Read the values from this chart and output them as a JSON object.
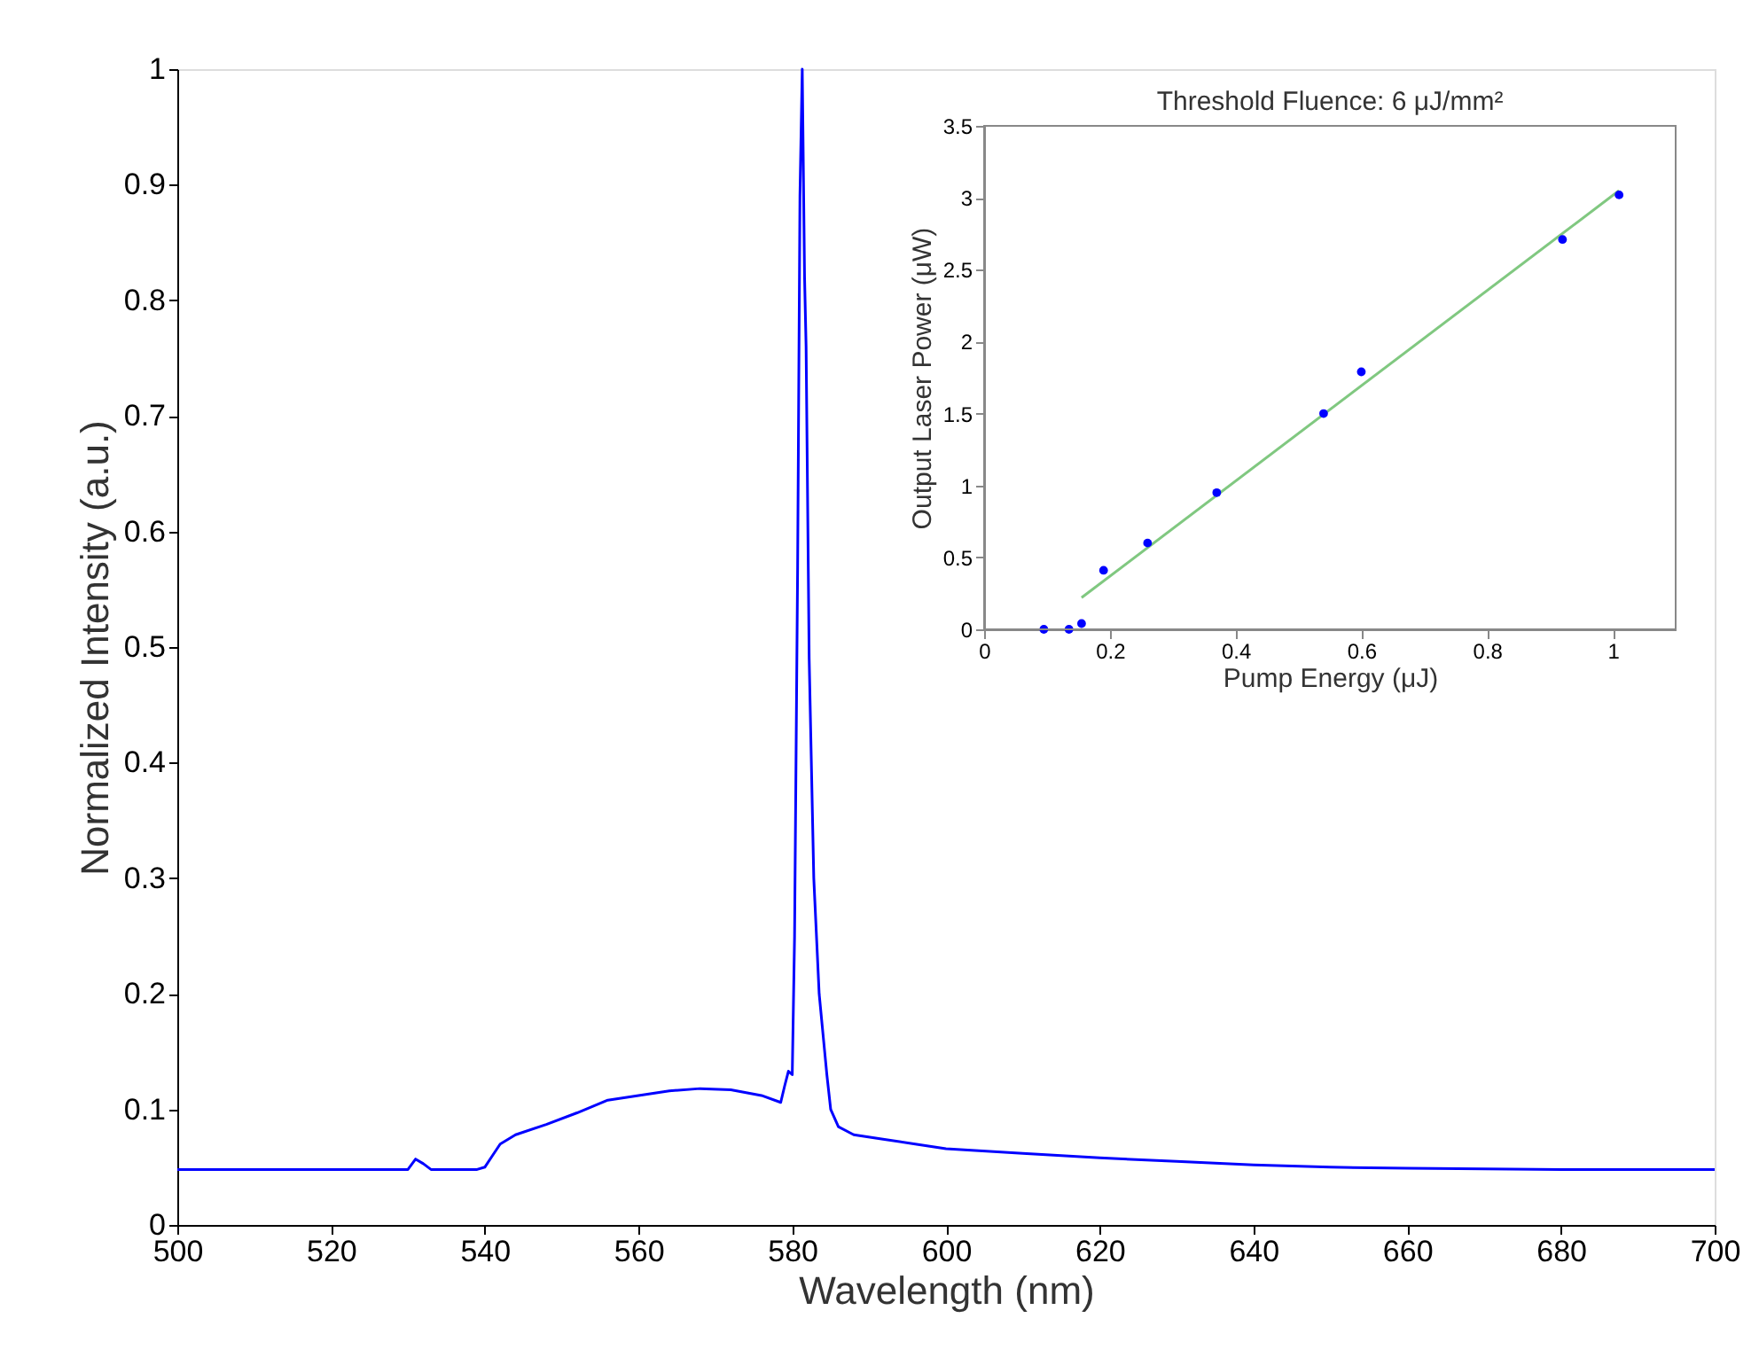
{
  "chart_data": [
    {
      "type": "line",
      "xlabel": "Wavelength (nm)",
      "ylabel": "Normalized Intensity (a.u.)",
      "color": "#0000ff",
      "line_style": "solid",
      "grid": false,
      "x": [
        500,
        510,
        520,
        530,
        531,
        532,
        533,
        536,
        539,
        540,
        541,
        542,
        544,
        548,
        552,
        556,
        560,
        564,
        568,
        572,
        576,
        578.5,
        579,
        579.5,
        580,
        580.3,
        580.7,
        581,
        581.3,
        581.6,
        581.8,
        582.2,
        582.8,
        583.5,
        584.5,
        585,
        586,
        588,
        592,
        596,
        600,
        610,
        620,
        630,
        640,
        650,
        660,
        680,
        700
      ],
      "values": [
        0.048,
        0.048,
        0.048,
        0.048,
        0.057,
        0.053,
        0.048,
        0.048,
        0.048,
        0.05,
        0.06,
        0.07,
        0.078,
        0.087,
        0.097,
        0.108,
        0.112,
        0.116,
        0.118,
        0.117,
        0.112,
        0.106,
        0.12,
        0.133,
        0.13,
        0.25,
        0.57,
        0.89,
        1.0,
        0.82,
        0.76,
        0.49,
        0.3,
        0.2,
        0.13,
        0.1,
        0.085,
        0.078,
        0.074,
        0.07,
        0.066,
        0.062,
        0.058,
        0.055,
        0.052,
        0.05,
        0.049,
        0.048,
        0.048
      ],
      "xlim": [
        500,
        700
      ],
      "xticks": [
        500,
        520,
        540,
        560,
        580,
        600,
        620,
        640,
        660,
        680,
        700
      ],
      "ylim": [
        0,
        1
      ],
      "yticks": [
        0,
        0.1,
        0.2,
        0.3,
        0.4,
        0.5,
        0.6,
        0.7,
        0.8,
        0.9,
        1
      ]
    },
    {
      "type": "scatter",
      "title": "Threshold Fluence: 6 μJ/mm²",
      "xlabel": "Pump Energy (μJ)",
      "ylabel": "Output Laser Power (μW)",
      "grid": false,
      "series": [
        {
          "type": "scatter",
          "color": "#0000ff",
          "marker": "circle",
          "x": [
            0.095,
            0.135,
            0.155,
            0.19,
            0.26,
            0.37,
            0.54,
            0.6,
            0.92,
            1.01
          ],
          "values": [
            0,
            0,
            0.04,
            0.41,
            0.6,
            0.95,
            1.5,
            1.79,
            2.71,
            3.02
          ]
        },
        {
          "type": "line",
          "color": "#80c880",
          "line_style": "solid",
          "x": [
            0.155,
            1.01
          ],
          "values": [
            0.22,
            3.05
          ]
        }
      ],
      "xlim": [
        0,
        1.1
      ],
      "xticks": [
        0,
        0.2,
        0.4,
        0.6,
        0.8,
        1
      ],
      "ylim": [
        0,
        3.5
      ],
      "yticks": [
        0,
        0.5,
        1,
        1.5,
        2,
        2.5,
        3,
        3.5
      ]
    }
  ]
}
